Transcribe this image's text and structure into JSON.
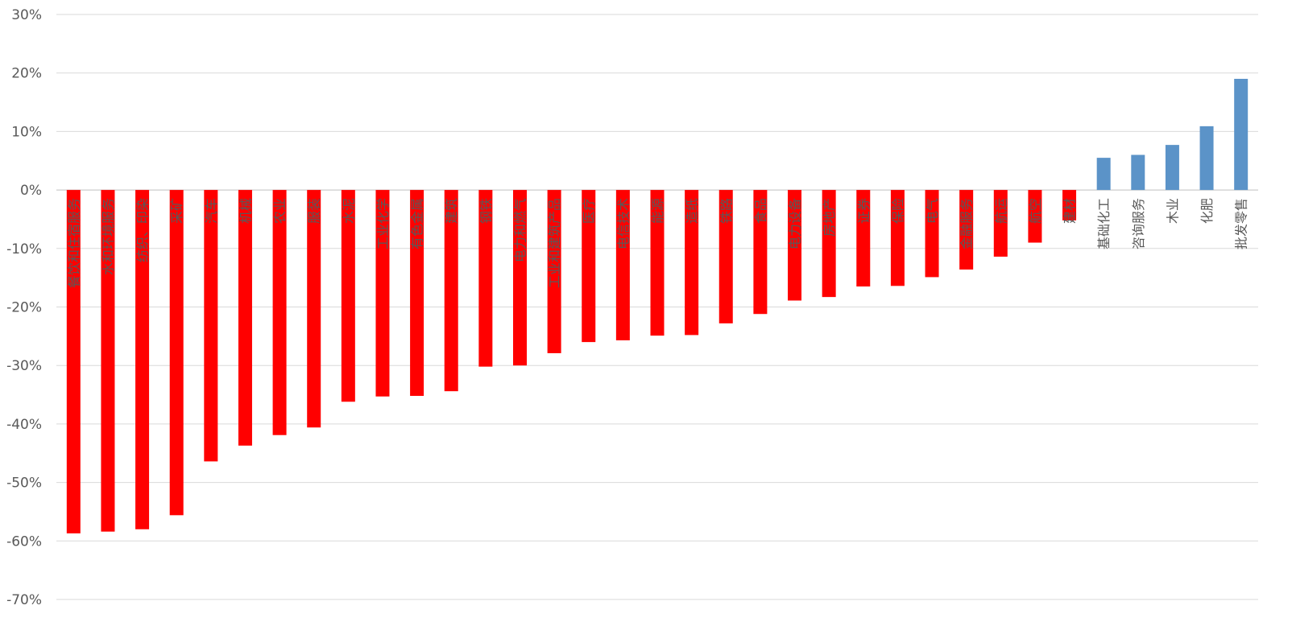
{
  "chart_data": {
    "type": "bar",
    "title": "",
    "xlabel": "",
    "ylabel": "",
    "ylim": [
      -70,
      30
    ],
    "yticks": [
      30,
      20,
      10,
      0,
      -10,
      -20,
      -30,
      -40,
      -50,
      -60,
      -70
    ],
    "ytick_labels": [
      "30%",
      "20%",
      "10%",
      "0%",
      "-10%",
      "-20%",
      "-30%",
      "-40%",
      "-50%",
      "-60%",
      "-70%"
    ],
    "grid": true,
    "legend": "none",
    "categories": [
      "餐饮和住宿服务",
      "水和环境服务",
      "纺织、印染",
      "采矿",
      "汽车",
      "机械",
      "农业",
      "服装",
      "水泥",
      "工业化学",
      "有色金属",
      "建筑",
      "钢铁",
      "电力和燃气",
      "工业和建筑产品",
      "医疗",
      "电信技术",
      "能源",
      "造纸",
      "铁路",
      "食品",
      "电力设备",
      "房地产",
      "证券",
      "保险",
      "电气",
      "金融服务",
      "航运",
      "航空",
      "建材",
      "基础化工",
      "咨询服务",
      "木业",
      "化肥",
      "批发零售"
    ],
    "values": [
      -58.7,
      -58.4,
      -58.0,
      -55.6,
      -46.4,
      -43.7,
      -41.9,
      -40.6,
      -36.2,
      -35.3,
      -35.2,
      -34.4,
      -30.2,
      -30.0,
      -27.9,
      -26.0,
      -25.7,
      -24.9,
      -24.8,
      -22.8,
      -21.2,
      -18.9,
      -18.3,
      -16.5,
      -16.4,
      -14.9,
      -13.6,
      -11.4,
      -9.0,
      -5.2,
      5.5,
      6.0,
      7.7,
      10.9,
      19.0
    ],
    "negative_color": "#ff0000",
    "positive_color": "#5b93c8",
    "label_color": "#595959"
  }
}
